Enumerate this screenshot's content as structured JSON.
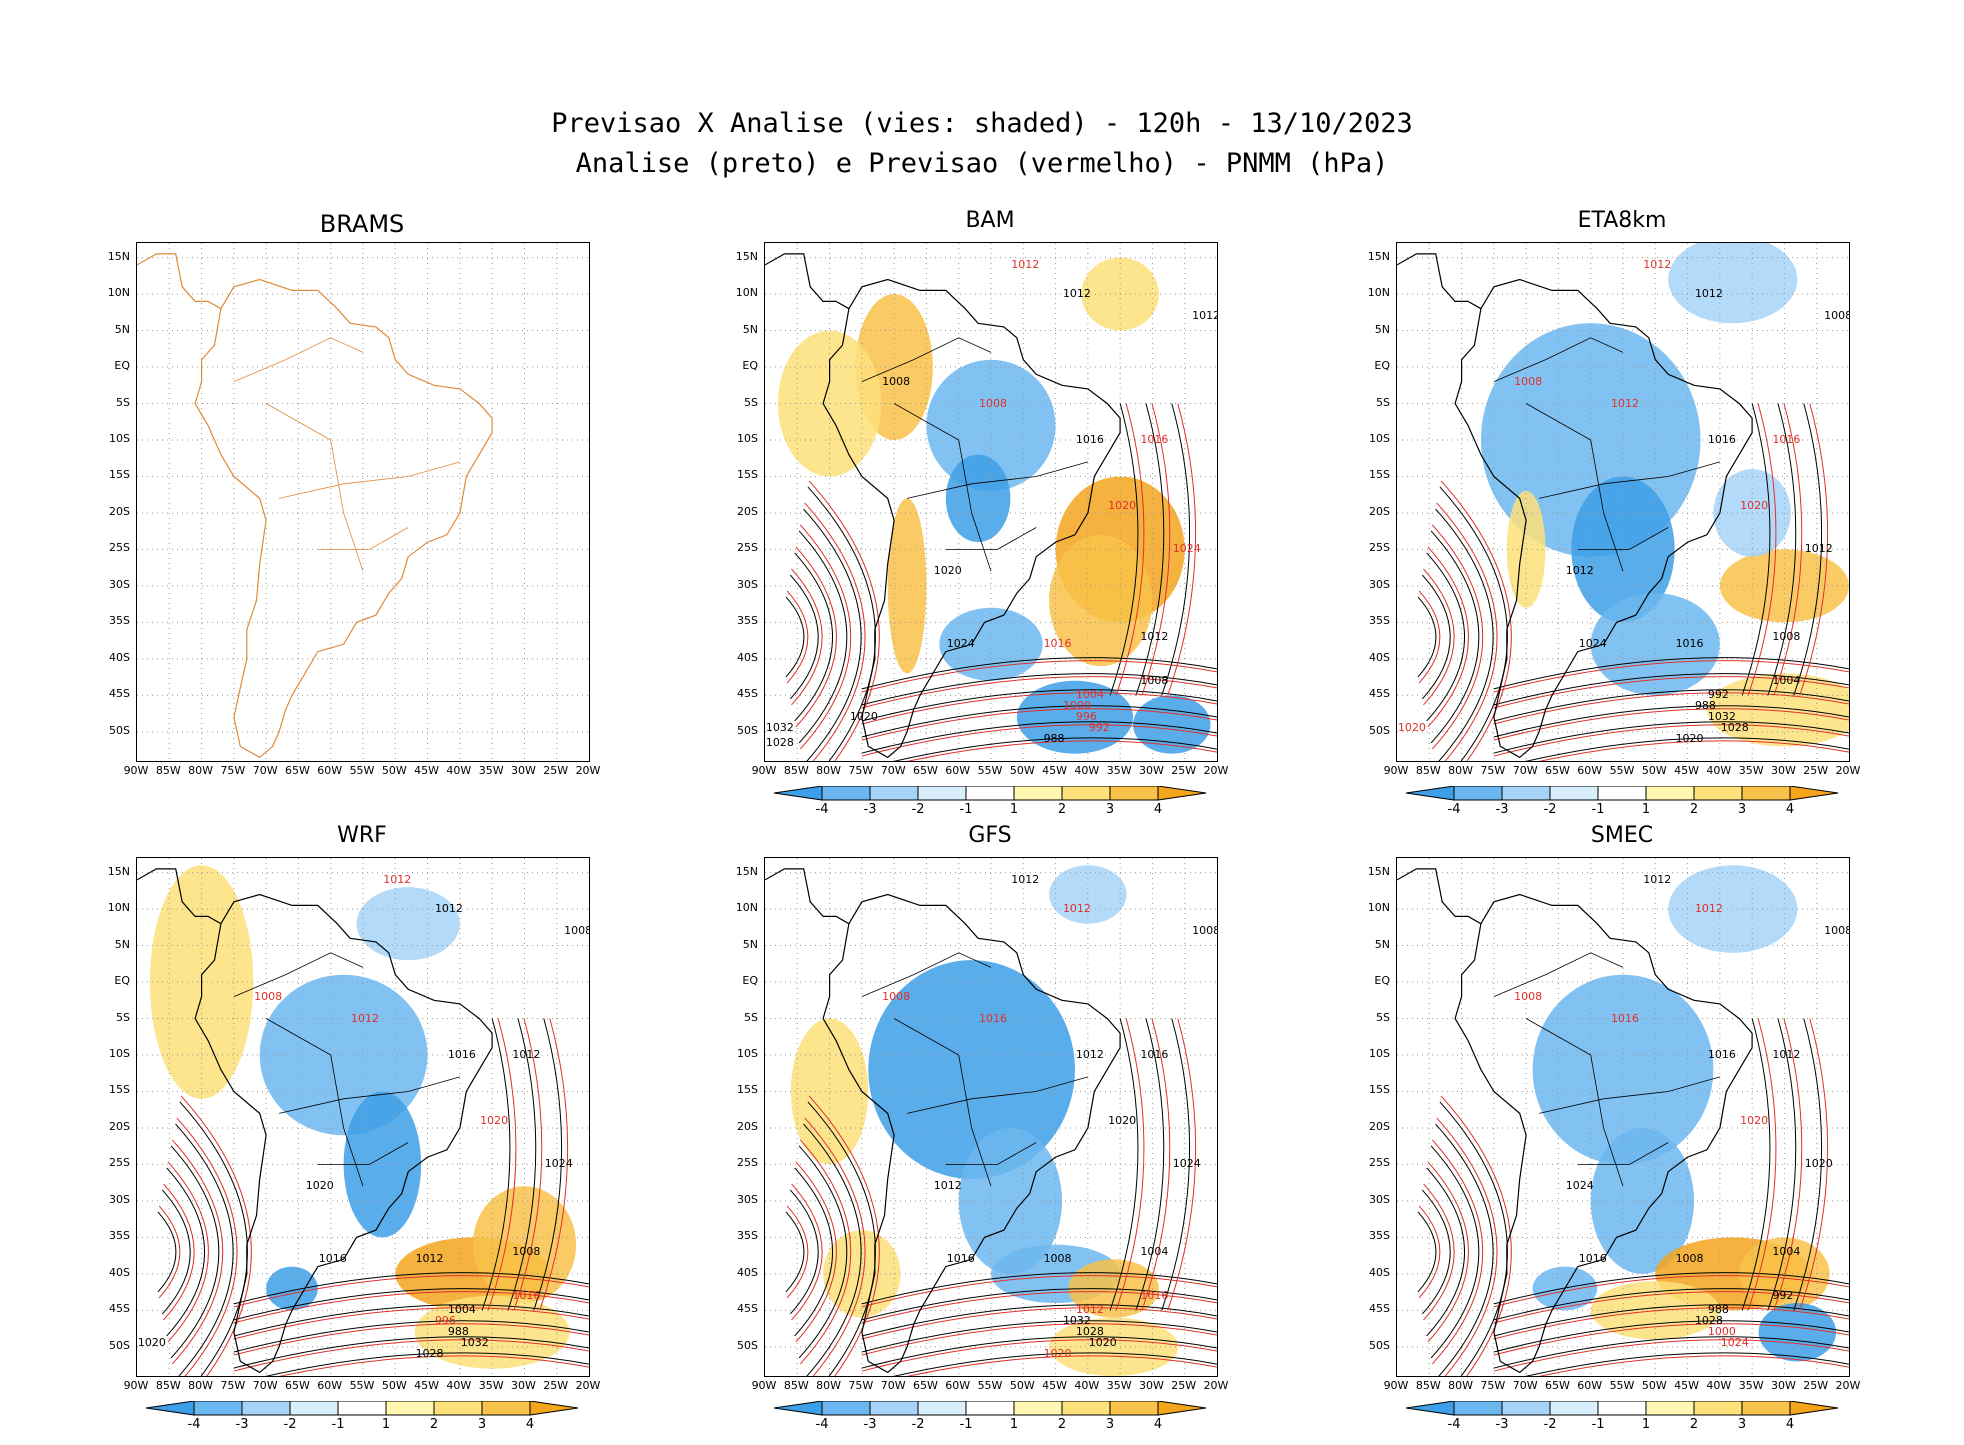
{
  "header": {
    "title_line1": "Previsao X Analise (vies: shaded) - 120h - 13/10/2023",
    "title_line2": "Analise (preto) e Previsao (vermelho) - PNMM (hPa)"
  },
  "lat_labels": [
    "15N",
    "10N",
    "5N",
    "EQ",
    "5S",
    "10S",
    "15S",
    "20S",
    "25S",
    "30S",
    "35S",
    "40S",
    "45S",
    "50S"
  ],
  "lon_labels": [
    "90W",
    "85W",
    "80W",
    "75W",
    "70W",
    "65W",
    "60W",
    "55W",
    "50W",
    "45W",
    "40W",
    "35W",
    "30W",
    "25W",
    "20W"
  ],
  "colorbar": {
    "labels": [
      "-4",
      "-3",
      "-2",
      "-1",
      "1",
      "2",
      "3",
      "4"
    ],
    "colors": [
      "#3d9fe8",
      "#6cb7f0",
      "#a6d3f7",
      "#d8eefb",
      "#ffffff",
      "#fff7b0",
      "#fde17a",
      "#f9c24a",
      "#f4a51c"
    ]
  },
  "colors": {
    "analysis_contour": "#000000",
    "forecast_contour": "#e0302a",
    "coastline": "#e08a3a"
  },
  "panels": [
    {
      "id": "brams",
      "title": "BRAMS",
      "has_colorbar": false,
      "labels": []
    },
    {
      "id": "bam",
      "title": "BAM",
      "has_colorbar": true,
      "labels": [
        {
          "t": "1012",
          "c": "red"
        },
        {
          "t": "1012",
          "c": "black"
        },
        {
          "t": "1012",
          "c": "black"
        },
        {
          "t": "1008",
          "c": "black"
        },
        {
          "t": "1008",
          "c": "red"
        },
        {
          "t": "1016",
          "c": "black"
        },
        {
          "t": "1016",
          "c": "red"
        },
        {
          "t": "1020",
          "c": "red"
        },
        {
          "t": "1024",
          "c": "red"
        },
        {
          "t": "1020",
          "c": "black"
        },
        {
          "t": "1024",
          "c": "black"
        },
        {
          "t": "1016",
          "c": "red"
        },
        {
          "t": "1012",
          "c": "black"
        },
        {
          "t": "1008",
          "c": "black"
        },
        {
          "t": "1004",
          "c": "red"
        },
        {
          "t": "1000",
          "c": "red"
        },
        {
          "t": "996",
          "c": "red"
        },
        {
          "t": "992",
          "c": "red"
        },
        {
          "t": "988",
          "c": "black"
        },
        {
          "t": "1032",
          "c": "black"
        },
        {
          "t": "1028",
          "c": "black"
        },
        {
          "t": "1020",
          "c": "black"
        }
      ]
    },
    {
      "id": "eta8km",
      "title": "ETA8km",
      "has_colorbar": true,
      "labels": [
        {
          "t": "1012",
          "c": "red"
        },
        {
          "t": "1012",
          "c": "black"
        },
        {
          "t": "1008",
          "c": "black"
        },
        {
          "t": "1008",
          "c": "red"
        },
        {
          "t": "1012",
          "c": "red"
        },
        {
          "t": "1016",
          "c": "black"
        },
        {
          "t": "1016",
          "c": "red"
        },
        {
          "t": "1020",
          "c": "red"
        },
        {
          "t": "1012",
          "c": "black"
        },
        {
          "t": "1012",
          "c": "black"
        },
        {
          "t": "1024",
          "c": "black"
        },
        {
          "t": "1016",
          "c": "black"
        },
        {
          "t": "1008",
          "c": "black"
        },
        {
          "t": "1004",
          "c": "black"
        },
        {
          "t": "992",
          "c": "black"
        },
        {
          "t": "988",
          "c": "black"
        },
        {
          "t": "1032",
          "c": "black"
        },
        {
          "t": "1028",
          "c": "black"
        },
        {
          "t": "1020",
          "c": "black"
        },
        {
          "t": "1020",
          "c": "red"
        }
      ]
    },
    {
      "id": "wrf",
      "title": "WRF",
      "has_colorbar": true,
      "labels": [
        {
          "t": "1012",
          "c": "red"
        },
        {
          "t": "1012",
          "c": "black"
        },
        {
          "t": "1008",
          "c": "black"
        },
        {
          "t": "1008",
          "c": "red"
        },
        {
          "t": "1012",
          "c": "red"
        },
        {
          "t": "1016",
          "c": "black"
        },
        {
          "t": "1012",
          "c": "black"
        },
        {
          "t": "1020",
          "c": "red"
        },
        {
          "t": "1024",
          "c": "black"
        },
        {
          "t": "1020",
          "c": "black"
        },
        {
          "t": "1016",
          "c": "black"
        },
        {
          "t": "1012",
          "c": "black"
        },
        {
          "t": "1008",
          "c": "black"
        },
        {
          "t": "1016",
          "c": "red"
        },
        {
          "t": "1004",
          "c": "black"
        },
        {
          "t": "996",
          "c": "red"
        },
        {
          "t": "988",
          "c": "black"
        },
        {
          "t": "1032",
          "c": "black"
        },
        {
          "t": "1028",
          "c": "black"
        },
        {
          "t": "1020",
          "c": "black"
        }
      ]
    },
    {
      "id": "gfs",
      "title": "GFS",
      "has_colorbar": true,
      "labels": [
        {
          "t": "1012",
          "c": "black"
        },
        {
          "t": "1012",
          "c": "red"
        },
        {
          "t": "1008",
          "c": "black"
        },
        {
          "t": "1008",
          "c": "red"
        },
        {
          "t": "1016",
          "c": "red"
        },
        {
          "t": "1012",
          "c": "black"
        },
        {
          "t": "1016",
          "c": "black"
        },
        {
          "t": "1020",
          "c": "black"
        },
        {
          "t": "1024",
          "c": "black"
        },
        {
          "t": "1012",
          "c": "black"
        },
        {
          "t": "1016",
          "c": "black"
        },
        {
          "t": "1008",
          "c": "black"
        },
        {
          "t": "1004",
          "c": "black"
        },
        {
          "t": "1016",
          "c": "red"
        },
        {
          "t": "1012",
          "c": "red"
        },
        {
          "t": "1032",
          "c": "black"
        },
        {
          "t": "1028",
          "c": "black"
        },
        {
          "t": "1020",
          "c": "black"
        },
        {
          "t": "1020",
          "c": "red"
        }
      ]
    },
    {
      "id": "smec",
      "title": "SMEC",
      "has_colorbar": true,
      "labels": [
        {
          "t": "1012",
          "c": "black"
        },
        {
          "t": "1012",
          "c": "red"
        },
        {
          "t": "1008",
          "c": "black"
        },
        {
          "t": "1008",
          "c": "red"
        },
        {
          "t": "1016",
          "c": "red"
        },
        {
          "t": "1016",
          "c": "black"
        },
        {
          "t": "1012",
          "c": "black"
        },
        {
          "t": "1020",
          "c": "red"
        },
        {
          "t": "1020",
          "c": "black"
        },
        {
          "t": "1024",
          "c": "black"
        },
        {
          "t": "1016",
          "c": "black"
        },
        {
          "t": "1008",
          "c": "black"
        },
        {
          "t": "1004",
          "c": "black"
        },
        {
          "t": "992",
          "c": "black"
        },
        {
          "t": "988",
          "c": "black"
        },
        {
          "t": "1028",
          "c": "black"
        },
        {
          "t": "1000",
          "c": "red"
        },
        {
          "t": "1024",
          "c": "red"
        }
      ]
    }
  ]
}
